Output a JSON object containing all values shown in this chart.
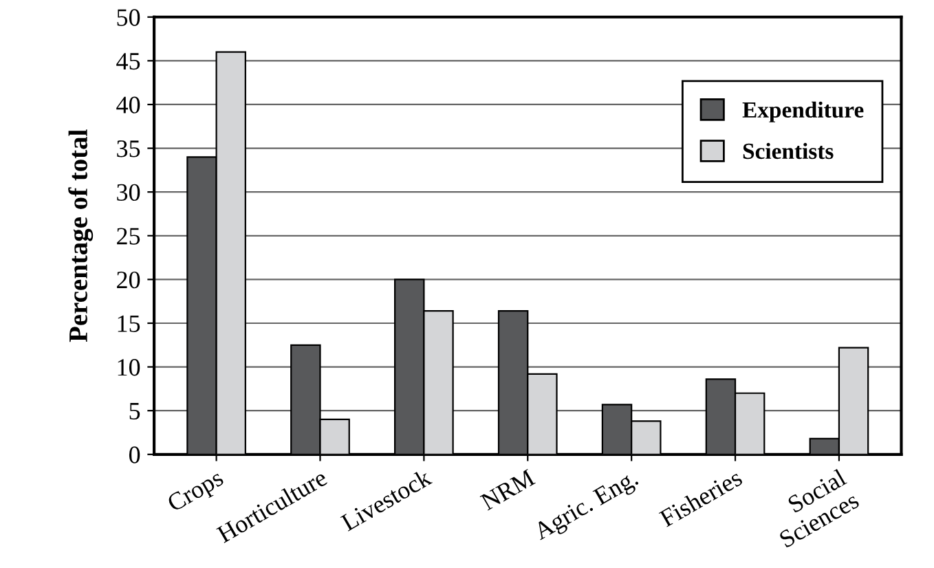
{
  "chart_data": {
    "type": "bar",
    "ylabel": "Percentage of total",
    "categories": [
      "Crops",
      "Horticulture",
      "Livestock",
      "NRM",
      "Agric. Eng.",
      "Fisheries",
      "Social\nSciences"
    ],
    "series": [
      {
        "name": "Expenditure",
        "color": "#58595b",
        "values": [
          34,
          12.5,
          20,
          16.4,
          5.7,
          8.6,
          1.8
        ]
      },
      {
        "name": "Scientists",
        "color": "#d4d5d7",
        "values": [
          46,
          4,
          16.4,
          9.2,
          3.8,
          7.0,
          12.2
        ]
      }
    ],
    "ylim": [
      0,
      50
    ],
    "yticks": [
      0,
      5,
      10,
      15,
      20,
      25,
      30,
      35,
      40,
      45,
      50
    ],
    "grid": "y",
    "legend": "top right"
  }
}
